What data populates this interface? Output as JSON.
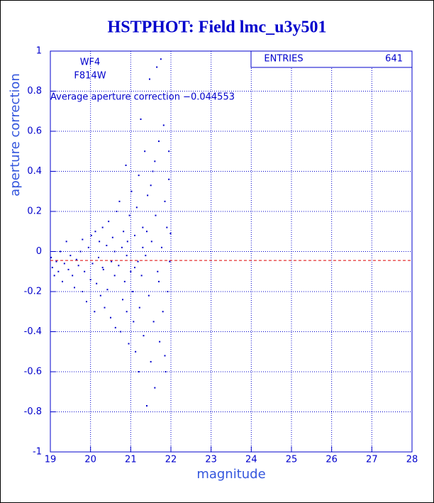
{
  "chart_data": {
    "type": "scatter",
    "title": "HSTPHOT: Field lmc_u3y501",
    "x_label": "magnitude",
    "y_label": "aperture correction",
    "annotations": [
      "WF4",
      "F814W"
    ],
    "average_label": "Average aperture correction −0.044553",
    "average": -0.044553,
    "average_color": "#dd0000",
    "stats": {
      "label": "ENTRIES",
      "value": 641
    },
    "color": "#0000cc",
    "grid": true,
    "xlim": [
      19,
      28
    ],
    "xticks": [
      19,
      20,
      21,
      22,
      23,
      24,
      25,
      26,
      27,
      28
    ],
    "ylim": [
      -1,
      1
    ],
    "yticks": [
      -1,
      -0.8,
      -0.6,
      -0.4,
      -0.2,
      0,
      0.2,
      0.4,
      0.6,
      0.8,
      1
    ],
    "x": [
      19.02,
      19.05,
      19.1,
      19.15,
      19.2,
      19.25,
      19.3,
      19.35,
      19.4,
      19.45,
      19.5,
      19.55,
      19.6,
      19.65,
      19.7,
      19.75,
      19.8,
      19.85,
      19.9,
      19.95,
      20.0,
      20.02,
      20.05,
      20.1,
      20.12,
      20.15,
      20.2,
      20.22,
      20.25,
      20.3,
      20.32,
      20.35,
      20.4,
      20.42,
      20.45,
      20.5,
      20.52,
      20.55,
      20.6,
      20.62,
      20.65,
      20.7,
      20.72,
      20.75,
      20.78,
      20.8,
      20.82,
      20.85,
      20.88,
      20.9,
      20.92,
      20.95,
      20.97,
      21.0,
      21.02,
      21.05,
      21.07,
      21.1,
      21.12,
      21.15,
      21.18,
      21.2,
      21.22,
      21.25,
      21.27,
      21.3,
      21.32,
      21.35,
      21.37,
      21.4,
      21.42,
      21.45,
      21.47,
      21.5,
      21.52,
      21.55,
      21.57,
      21.6,
      21.62,
      21.65,
      21.67,
      21.7,
      21.72,
      21.75,
      21.77,
      21.8,
      21.82,
      21.85,
      21.87,
      21.9,
      21.92,
      21.95,
      21.97,
      21.99,
      21.3,
      21.1,
      20.6,
      20.3,
      19.8,
      21.5,
      21.7,
      21.4,
      20.9,
      21.6,
      21.2,
      21.85,
      21.95
    ],
    "y": [
      -0.03,
      -0.08,
      -0.12,
      -0.05,
      -0.1,
      0.0,
      -0.15,
      -0.06,
      0.05,
      -0.09,
      -0.02,
      -0.12,
      -0.18,
      -0.04,
      -0.07,
      0.0,
      -0.2,
      -0.1,
      -0.25,
      0.02,
      -0.14,
      0.08,
      -0.06,
      -0.3,
      0.1,
      -0.16,
      -0.03,
      0.05,
      -0.22,
      0.12,
      -0.09,
      -0.28,
      0.03,
      -0.19,
      0.15,
      -0.33,
      -0.05,
      0.07,
      -0.12,
      -0.38,
      0.2,
      -0.07,
      0.25,
      -0.4,
      0.02,
      -0.24,
      0.1,
      -0.15,
      0.43,
      -0.3,
      0.05,
      -0.46,
      0.18,
      -0.1,
      0.3,
      -0.2,
      -0.35,
      0.08,
      -0.5,
      0.22,
      -0.05,
      0.38,
      -0.28,
      0.66,
      -0.12,
      0.12,
      -0.42,
      0.5,
      -0.02,
      -0.77,
      0.28,
      -0.22,
      0.86,
      -0.55,
      0.05,
      0.4,
      -0.35,
      -0.68,
      0.18,
      0.92,
      -0.1,
      0.55,
      -0.45,
      0.96,
      0.02,
      -0.3,
      0.63,
      0.25,
      -0.6,
      0.12,
      -0.2,
      0.5,
      -0.05,
      0.09,
      0.02,
      -0.08,
      0.0,
      -0.08,
      0.06,
      0.33,
      -0.15,
      0.1,
      -0.02,
      0.45,
      -0.6,
      -0.52,
      0.36
    ]
  }
}
